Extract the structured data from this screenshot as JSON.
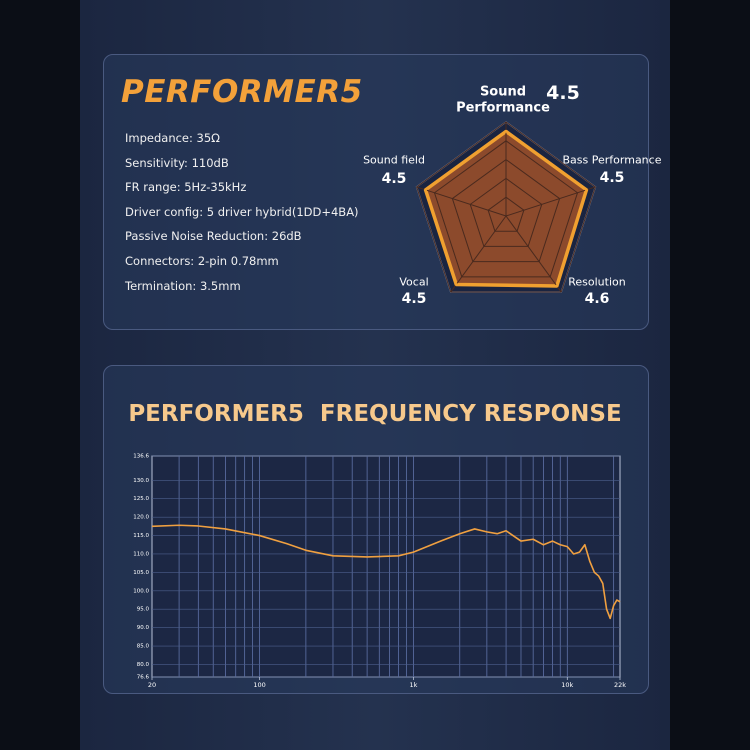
{
  "product": {
    "title": "PERFORMER5",
    "specs": [
      "Impedance: 35Ω",
      "Sensitivity: 110dB",
      "FR range: 5Hz-35kHz",
      "Driver config: 5 driver hybrid(1DD+4BA)",
      "Passive Noise Reduction: 26dB",
      "Connectors: 2-pin 0.78mm",
      "Termination: 3.5mm"
    ]
  },
  "chart_data": [
    {
      "type": "radar",
      "categories": [
        "Sound Performance",
        "Bass Performance",
        "Resolution",
        "Vocal",
        "Sound field"
      ],
      "values": [
        4.5,
        4.5,
        4.6,
        4.5,
        4.5
      ],
      "rlim": [
        0,
        5
      ],
      "color": "#f0a030",
      "grid": true
    },
    {
      "type": "line",
      "title": "PERFORMER5  FREQUENCY RESPONSE",
      "x": [
        20,
        30,
        40,
        60,
        100,
        150,
        200,
        300,
        500,
        800,
        1000,
        1500,
        2000,
        2500,
        3000,
        3500,
        4000,
        5000,
        6000,
        7000,
        8000,
        9000,
        10000,
        11000,
        12000,
        13000,
        14000,
        15000,
        16000,
        17000,
        18000,
        19000,
        20000,
        21000,
        22000
      ],
      "values": [
        117.5,
        117.8,
        117.6,
        116.8,
        115,
        112.8,
        111,
        109.5,
        109.2,
        109.5,
        110.5,
        113.5,
        115.5,
        116.8,
        116,
        115.5,
        116.3,
        113.5,
        114,
        112.5,
        113.5,
        112.5,
        112,
        110,
        110.5,
        112.5,
        108,
        105,
        104,
        102,
        95,
        92.5,
        96,
        97.5,
        97
      ],
      "color": "#f0a040",
      "xscale": "log",
      "grid": true,
      "xlim": [
        20,
        22000
      ],
      "ylim": [
        76.6,
        136.6
      ],
      "xticks": [
        20,
        100,
        {
          "value": 1000,
          "label": "1k"
        },
        {
          "value": 10000,
          "label": "10k"
        },
        {
          "value": 22000,
          "label": "22k"
        }
      ],
      "yticks": [
        76.6,
        {
          "value": 80,
          "label": "80.0"
        },
        {
          "value": 85,
          "label": "85.0"
        },
        {
          "value": 90,
          "label": "90.0"
        },
        {
          "value": 95,
          "label": "95.0"
        },
        {
          "value": 100,
          "label": "100.0"
        },
        {
          "value": 105,
          "label": "105.0"
        },
        {
          "value": 110,
          "label": "110.0"
        },
        {
          "value": 115,
          "label": "115.0"
        },
        {
          "value": 120,
          "label": "120.0"
        },
        {
          "value": 125,
          "label": "125.0"
        },
        {
          "value": 130,
          "label": "130.0"
        },
        136.6
      ]
    }
  ]
}
